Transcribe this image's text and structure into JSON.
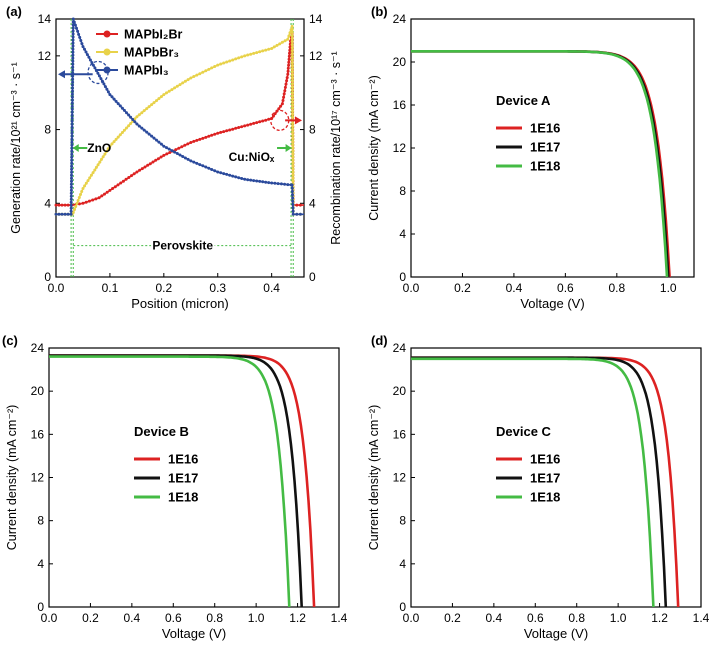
{
  "chart_data": [
    {
      "panel_label": "(a)",
      "type": "line",
      "xlabel": "Position (micron)",
      "ylabel_left": "Generation rate/10²¹ cm⁻³ · s⁻¹",
      "ylabel_right": "Recombination rate/10¹⁷ cm⁻³ · s⁻¹",
      "xlim": [
        0.0,
        0.46
      ],
      "ylim_left": [
        0,
        14
      ],
      "ylim_right": [
        0,
        14
      ],
      "xticks": [
        "0.0",
        "0.1",
        "0.2",
        "0.3",
        "0.4"
      ],
      "yticks_left": [
        "0",
        "4",
        "8",
        "12",
        "14"
      ],
      "yticks_right": [
        "0",
        "4",
        "8",
        "12",
        "14"
      ],
      "legend": [
        {
          "name": "MAPbI₂Br",
          "color": "#dd2222"
        },
        {
          "name": "MAPbBr₃",
          "color": "#e8d24a"
        },
        {
          "name": "MAPbI₃",
          "color": "#2b4a9c"
        }
      ],
      "annotations": {
        "left": "ZnO",
        "right": "Cu:NiOₓ",
        "middle": "Perovskite"
      },
      "series": [
        {
          "name": "MAPbI₂Br",
          "color": "#dd2222",
          "axis": "right",
          "x": [
            0.0,
            0.028,
            0.03,
            0.05,
            0.08,
            0.1,
            0.15,
            0.2,
            0.25,
            0.3,
            0.35,
            0.4,
            0.42,
            0.43,
            0.435,
            0.438,
            0.44,
            0.46
          ],
          "y": [
            3.9,
            3.9,
            3.9,
            4.0,
            4.3,
            4.7,
            5.7,
            6.6,
            7.3,
            7.8,
            8.2,
            8.6,
            9.4,
            11.0,
            12.8,
            13.2,
            3.9,
            3.9
          ]
        },
        {
          "name": "MAPbBr₃",
          "color": "#e8d24a",
          "axis": "left",
          "x": [
            0.0,
            0.028,
            0.03,
            0.032,
            0.05,
            0.1,
            0.15,
            0.2,
            0.25,
            0.3,
            0.35,
            0.4,
            0.43,
            0.438,
            0.44,
            0.46
          ],
          "y": [
            3.4,
            3.4,
            3.4,
            3.5,
            4.8,
            7.1,
            8.7,
            9.9,
            10.8,
            11.5,
            12.0,
            12.4,
            12.9,
            13.6,
            3.4,
            3.4
          ]
        },
        {
          "name": "MAPbI₃",
          "color": "#2b4a9c",
          "axis": "left",
          "x": [
            0.0,
            0.028,
            0.032,
            0.05,
            0.1,
            0.15,
            0.2,
            0.25,
            0.3,
            0.35,
            0.4,
            0.436,
            0.438,
            0.44,
            0.46
          ],
          "y": [
            3.4,
            3.4,
            14.0,
            12.5,
            9.9,
            8.3,
            7.1,
            6.3,
            5.7,
            5.3,
            5.1,
            5.0,
            5.0,
            3.4,
            3.4
          ]
        }
      ]
    },
    {
      "panel_label": "(b)",
      "type": "line",
      "title": "Device A",
      "xlabel": "Voltage (V)",
      "ylabel": "Current density (mA cm⁻²)",
      "xlim": [
        0.0,
        1.1
      ],
      "ylim": [
        0,
        24
      ],
      "xticks": [
        "0.0",
        "0.2",
        "0.4",
        "0.6",
        "0.8",
        "1.0"
      ],
      "yticks": [
        "0",
        "4",
        "8",
        "12",
        "16",
        "20",
        "24"
      ],
      "series": [
        {
          "name": "1E16",
          "color": "#dd2222",
          "jsc": 21.0,
          "voc": 1.005
        },
        {
          "name": "1E17",
          "color": "#111111",
          "jsc": 21.0,
          "voc": 1.0
        },
        {
          "name": "1E18",
          "color": "#44bb44",
          "jsc": 21.0,
          "voc": 0.995
        }
      ]
    },
    {
      "panel_label": "(c)",
      "type": "line",
      "title": "Device B",
      "xlabel": "Voltage (V)",
      "ylabel": "Current density (mA cm⁻²)",
      "xlim": [
        0.0,
        1.4
      ],
      "ylim": [
        0,
        24
      ],
      "xticks": [
        "0.0",
        "0.2",
        "0.4",
        "0.6",
        "0.8",
        "1.0",
        "1.2",
        "1.4"
      ],
      "yticks": [
        "0",
        "4",
        "8",
        "12",
        "16",
        "20",
        "24"
      ],
      "series": [
        {
          "name": "1E16",
          "color": "#dd2222",
          "jsc": 23.3,
          "voc": 1.28
        },
        {
          "name": "1E17",
          "color": "#111111",
          "jsc": 23.3,
          "voc": 1.22
        },
        {
          "name": "1E18",
          "color": "#44bb44",
          "jsc": 23.2,
          "voc": 1.16
        }
      ]
    },
    {
      "panel_label": "(d)",
      "type": "line",
      "title": "Device C",
      "xlabel": "Voltage (V)",
      "ylabel": "Current density (mA cm⁻²)",
      "xlim": [
        0.0,
        1.4
      ],
      "ylim": [
        0,
        24
      ],
      "xticks": [
        "0.0",
        "0.2",
        "0.4",
        "0.6",
        "0.8",
        "1.0",
        "1.2",
        "1.4"
      ],
      "yticks": [
        "0",
        "4",
        "8",
        "12",
        "16",
        "20",
        "24"
      ],
      "series": [
        {
          "name": "1E16",
          "color": "#dd2222",
          "jsc": 23.1,
          "voc": 1.29
        },
        {
          "name": "1E17",
          "color": "#111111",
          "jsc": 23.1,
          "voc": 1.23
        },
        {
          "name": "1E18",
          "color": "#44bb44",
          "jsc": 23.0,
          "voc": 1.17
        }
      ]
    }
  ]
}
